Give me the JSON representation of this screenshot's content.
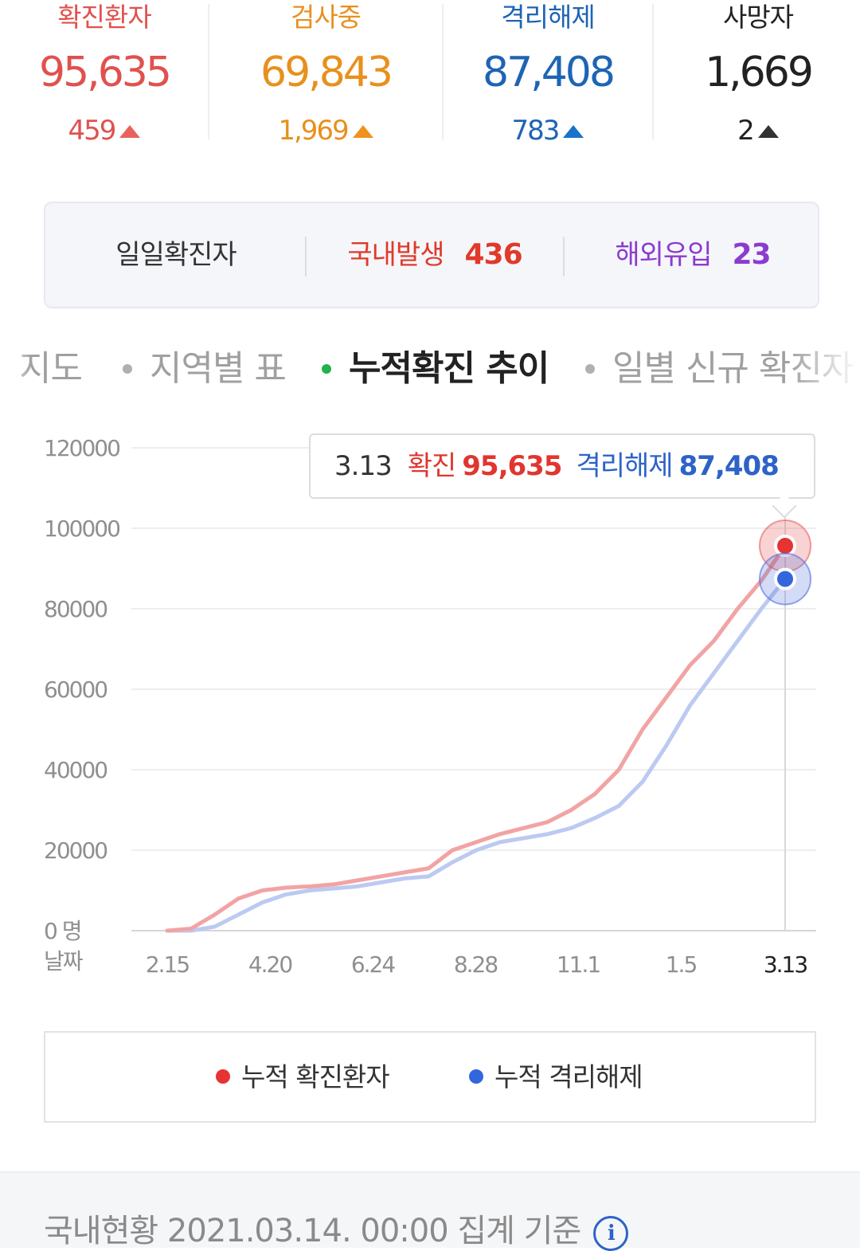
{
  "stats": [
    {
      "label": "확진환자",
      "value": "95,635",
      "delta": "459",
      "color": "#e0514e"
    },
    {
      "label": "검사중",
      "value": "69,843",
      "delta": "1,969",
      "color": "#e8901d"
    },
    {
      "label": "격리해제",
      "value": "87,408",
      "delta": "783",
      "color": "#1e64b4"
    },
    {
      "label": "사망자",
      "value": "1,669",
      "delta": "2",
      "color": "#222222"
    }
  ],
  "daily": {
    "label": "일일확진자",
    "domestic_label": "국내발생",
    "domestic_value": "436",
    "overseas_label": "해외유입",
    "overseas_value": "23",
    "domestic_color": "#e03a2a",
    "overseas_color": "#8b3bd0"
  },
  "tabs": [
    {
      "label": "지도",
      "active": false
    },
    {
      "label": "지역별 표",
      "active": false
    },
    {
      "label": "누적확진 추이",
      "active": true
    },
    {
      "label": "일별 신규 확진자",
      "active": false
    }
  ],
  "tooltip": {
    "date": "3.13",
    "confirmed_label": "확진",
    "confirmed_value": "95,635",
    "released_label": "격리해제",
    "released_value": "87,408"
  },
  "legend": {
    "confirmed": "누적 확진환자",
    "released": "누적 격리해제",
    "confirmed_color": "#e63333",
    "released_color": "#3366dd"
  },
  "footer": {
    "text": "국내현황 2021.03.14. 00:00 집계 기준",
    "icon": "info-icon"
  },
  "chart_data": {
    "type": "line",
    "x_label": "날짜",
    "y_unit_label": "명",
    "ylim": [
      0,
      120000
    ],
    "y_ticks": [
      0,
      20000,
      40000,
      60000,
      80000,
      100000,
      120000
    ],
    "x_ticks": [
      "2.15",
      "4.20",
      "6.24",
      "8.28",
      "11.1",
      "1.5",
      "3.13"
    ],
    "grid": true,
    "legend_position": "bottom",
    "x": [
      "2.15",
      "2.22",
      "3.1",
      "3.15",
      "4.1",
      "4.20",
      "5.10",
      "5.31",
      "6.24",
      "7.15",
      "8.5",
      "8.14",
      "8.28",
      "9.10",
      "10.1",
      "10.20",
      "11.1",
      "11.15",
      "11.25",
      "12.5",
      "12.15",
      "12.25",
      "1.5",
      "1.20",
      "2.5",
      "2.20",
      "3.13"
    ],
    "series": [
      {
        "name": "누적 확진환자",
        "color": "#f2a3a3",
        "values": [
          0,
          500,
          4000,
          8000,
          10000,
          10700,
          11000,
          11500,
          12500,
          13500,
          14500,
          15500,
          20000,
          22000,
          24000,
          25500,
          27000,
          30000,
          34000,
          40000,
          50000,
          58000,
          66000,
          72000,
          80000,
          87000,
          95635
        ]
      },
      {
        "name": "누적 격리해제",
        "color": "#bccaf2",
        "values": [
          0,
          0,
          1000,
          4000,
          7000,
          9000,
          10000,
          10500,
          11000,
          12000,
          13000,
          13500,
          17000,
          20000,
          22000,
          23000,
          24000,
          25500,
          28000,
          31000,
          37000,
          46000,
          56000,
          64000,
          72000,
          80000,
          87408
        ]
      }
    ]
  }
}
